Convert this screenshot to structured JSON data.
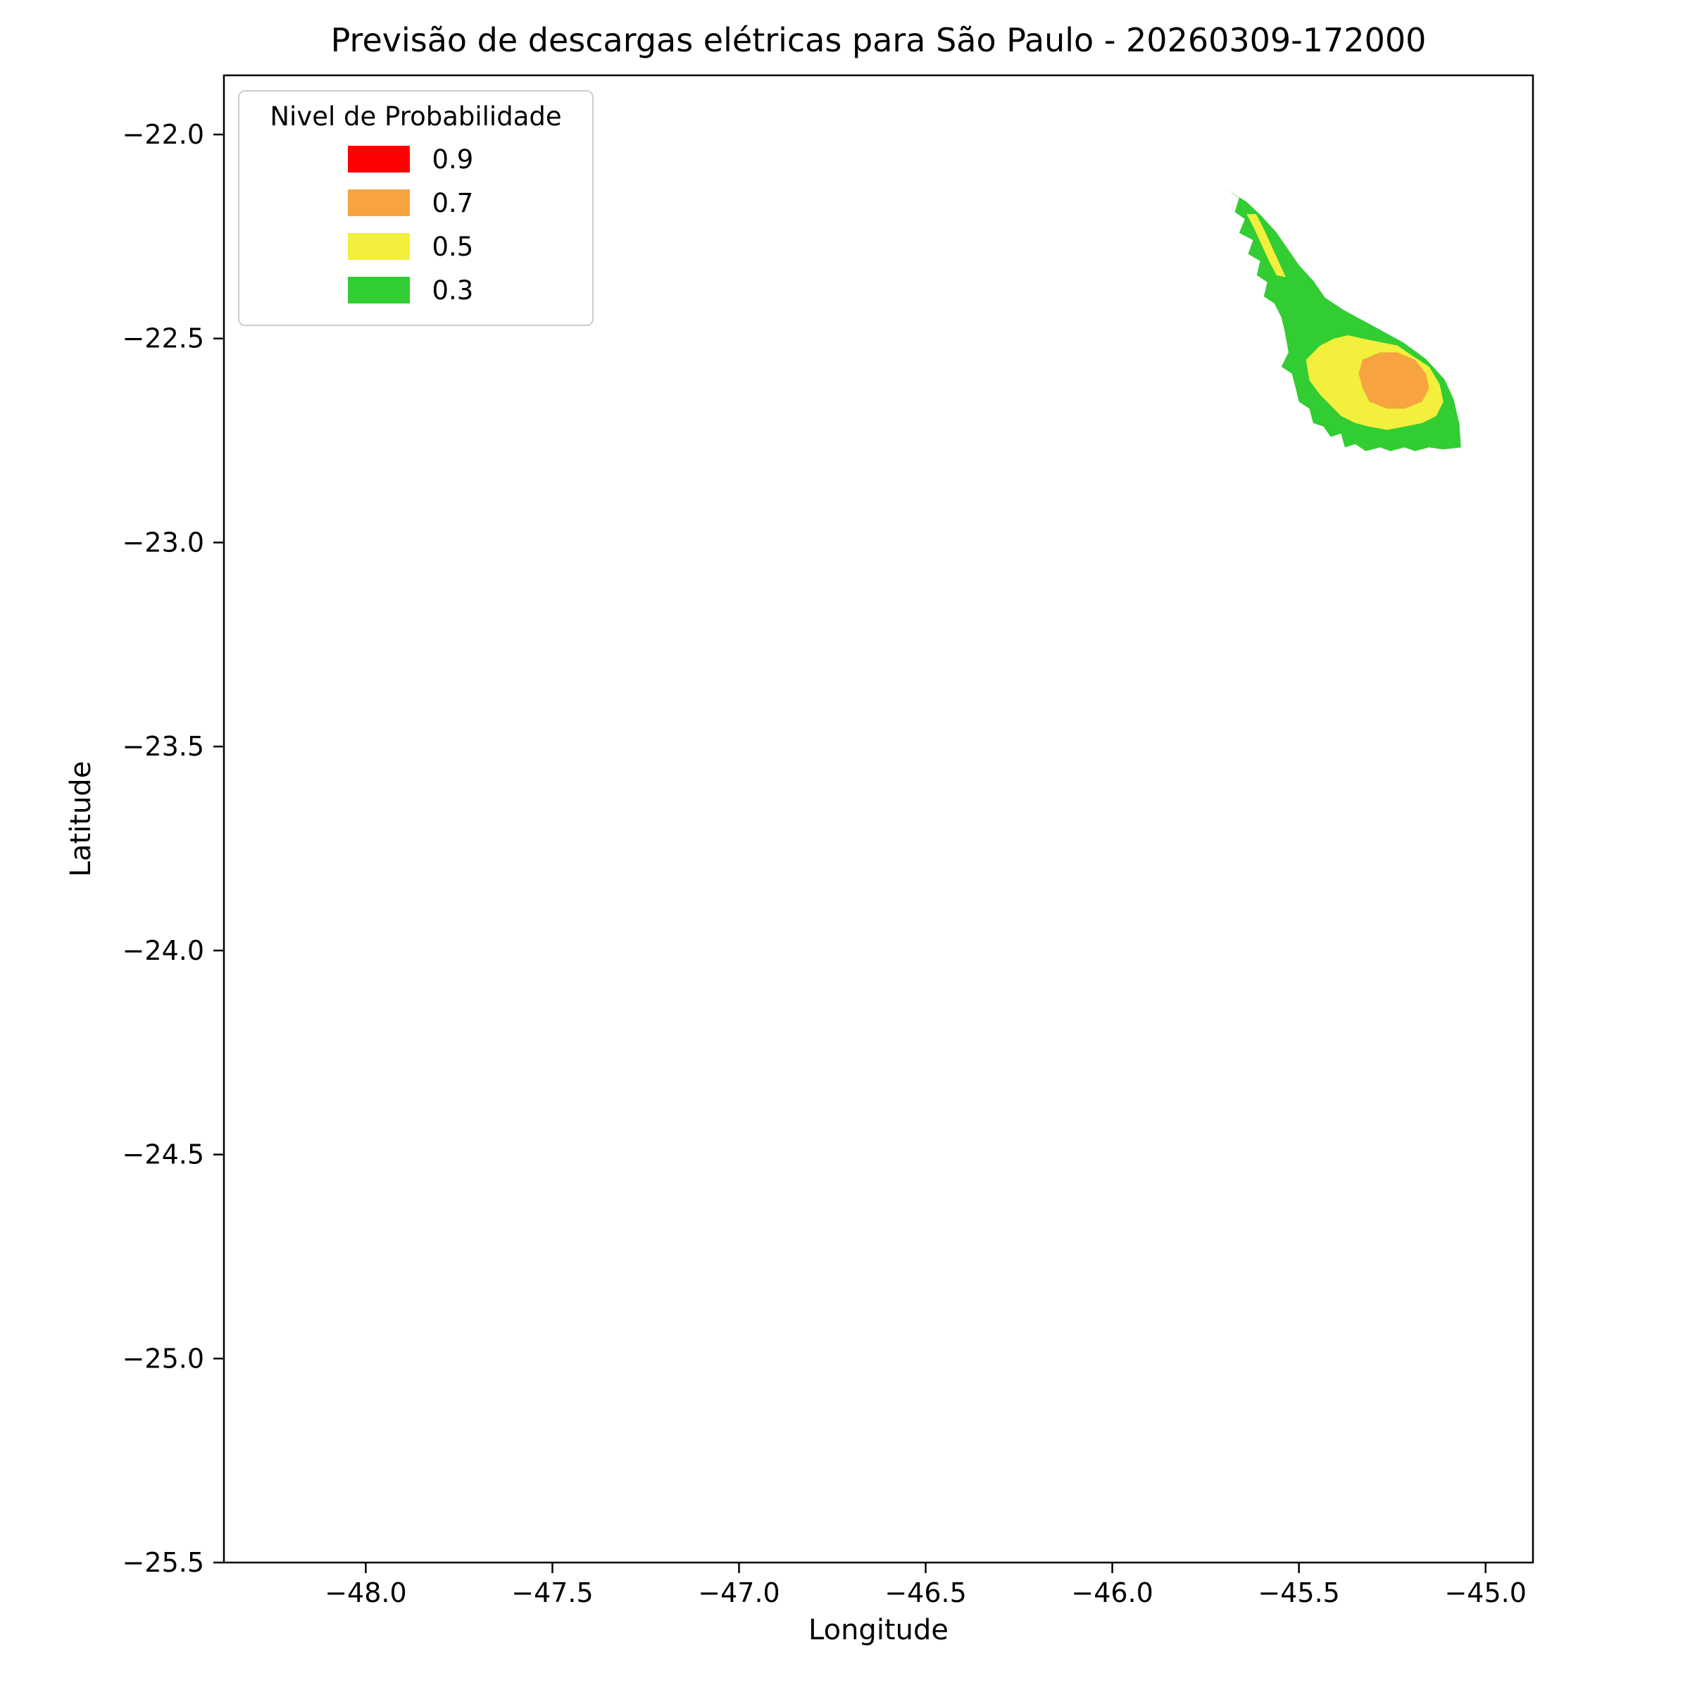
{
  "chart_data": {
    "type": "contour",
    "title": "Previsão de descargas elétricas para São Paulo - 20260309-172000",
    "xlabel": "Longitude",
    "ylabel": "Latitude",
    "xlim": [
      -48.38,
      -44.873
    ],
    "ylim": [
      -25.5,
      -21.855
    ],
    "grid": false,
    "xticks": {
      "values": [
        -48.0,
        -47.5,
        -47.0,
        -46.5,
        -46.0,
        -45.5,
        -45.0
      ],
      "labels": [
        "−48.0",
        "−47.5",
        "−47.0",
        "−46.5",
        "−46.0",
        "−45.5",
        "−45.0"
      ]
    },
    "yticks": {
      "values": [
        -22.0,
        -22.5,
        -23.0,
        -23.5,
        -24.0,
        -24.5,
        -25.0,
        -25.5
      ],
      "labels": [
        "−22.0",
        "−22.5",
        "−23.0",
        "−23.5",
        "−24.0",
        "−24.5",
        "−25.0",
        "−25.5"
      ]
    },
    "legend": {
      "title": "Nivel de Probabilidade",
      "position": "upper left",
      "entries": [
        {
          "label": "0.9",
          "color": "#ff0000"
        },
        {
          "label": "0.7",
          "color": "#f7a440"
        },
        {
          "label": "0.5",
          "color": "#f2ef3d"
        },
        {
          "label": "0.3",
          "color": "#32cd32"
        }
      ]
    },
    "levels": [
      0.3,
      0.5,
      0.7,
      0.9
    ],
    "contours": [
      {
        "level": 0.3,
        "color": "#32cd32",
        "polygon": [
          [
            -45.694,
            -22.134
          ],
          [
            -45.66,
            -22.155
          ],
          [
            -45.672,
            -22.19
          ],
          [
            -45.645,
            -22.207
          ],
          [
            -45.66,
            -22.241
          ],
          [
            -45.623,
            -22.259
          ],
          [
            -45.636,
            -22.293
          ],
          [
            -45.604,
            -22.31
          ],
          [
            -45.613,
            -22.345
          ],
          [
            -45.585,
            -22.362
          ],
          [
            -45.594,
            -22.397
          ],
          [
            -45.566,
            -22.414
          ],
          [
            -45.547,
            -22.448
          ],
          [
            -45.538,
            -22.483
          ],
          [
            -45.528,
            -22.534
          ],
          [
            -45.547,
            -22.569
          ],
          [
            -45.519,
            -22.586
          ],
          [
            -45.509,
            -22.621
          ],
          [
            -45.5,
            -22.655
          ],
          [
            -45.472,
            -22.672
          ],
          [
            -45.462,
            -22.707
          ],
          [
            -45.434,
            -22.716
          ],
          [
            -45.415,
            -22.741
          ],
          [
            -45.387,
            -22.733
          ],
          [
            -45.377,
            -22.767
          ],
          [
            -45.349,
            -22.759
          ],
          [
            -45.321,
            -22.776
          ],
          [
            -45.283,
            -22.767
          ],
          [
            -45.255,
            -22.776
          ],
          [
            -45.217,
            -22.767
          ],
          [
            -45.189,
            -22.776
          ],
          [
            -45.151,
            -22.767
          ],
          [
            -45.113,
            -22.772
          ],
          [
            -45.066,
            -22.767
          ],
          [
            -45.07,
            -22.71
          ],
          [
            -45.085,
            -22.65
          ],
          [
            -45.11,
            -22.6
          ],
          [
            -45.16,
            -22.55
          ],
          [
            -45.22,
            -22.51
          ],
          [
            -45.3,
            -22.47
          ],
          [
            -45.38,
            -22.43
          ],
          [
            -45.43,
            -22.4
          ],
          [
            -45.46,
            -22.36
          ],
          [
            -45.5,
            -22.32
          ],
          [
            -45.53,
            -22.28
          ],
          [
            -45.56,
            -22.24
          ],
          [
            -45.6,
            -22.2
          ],
          [
            -45.64,
            -22.165
          ]
        ]
      },
      {
        "level": 0.5,
        "color": "#f2ef3d",
        "polygon": [
          [
            -45.64,
            -22.195
          ],
          [
            -45.62,
            -22.23
          ],
          [
            -45.6,
            -22.27
          ],
          [
            -45.58,
            -22.31
          ],
          [
            -45.56,
            -22.345
          ],
          [
            -45.535,
            -22.35
          ],
          [
            -45.555,
            -22.31
          ],
          [
            -45.575,
            -22.27
          ],
          [
            -45.595,
            -22.23
          ],
          [
            -45.615,
            -22.195
          ]
        ]
      },
      {
        "level": 0.5,
        "color": "#f2ef3d",
        "polygon": [
          [
            -45.481,
            -22.552
          ],
          [
            -45.443,
            -22.517
          ],
          [
            -45.406,
            -22.5
          ],
          [
            -45.368,
            -22.492
          ],
          [
            -45.33,
            -22.5
          ],
          [
            -45.283,
            -22.509
          ],
          [
            -45.236,
            -22.517
          ],
          [
            -45.2,
            -22.54
          ],
          [
            -45.151,
            -22.569
          ],
          [
            -45.123,
            -22.612
          ],
          [
            -45.113,
            -22.655
          ],
          [
            -45.132,
            -22.69
          ],
          [
            -45.17,
            -22.707
          ],
          [
            -45.217,
            -22.716
          ],
          [
            -45.264,
            -22.724
          ],
          [
            -45.311,
            -22.716
          ],
          [
            -45.349,
            -22.707
          ],
          [
            -45.387,
            -22.69
          ],
          [
            -45.415,
            -22.664
          ],
          [
            -45.443,
            -22.638
          ],
          [
            -45.472,
            -22.603
          ]
        ]
      },
      {
        "level": 0.7,
        "color": "#f7a440",
        "polygon": [
          [
            -45.33,
            -22.552
          ],
          [
            -45.283,
            -22.534
          ],
          [
            -45.236,
            -22.534
          ],
          [
            -45.189,
            -22.552
          ],
          [
            -45.16,
            -22.586
          ],
          [
            -45.151,
            -22.621
          ],
          [
            -45.17,
            -22.655
          ],
          [
            -45.217,
            -22.672
          ],
          [
            -45.264,
            -22.672
          ],
          [
            -45.311,
            -22.655
          ],
          [
            -45.33,
            -22.621
          ],
          [
            -45.34,
            -22.586
          ]
        ]
      }
    ]
  }
}
